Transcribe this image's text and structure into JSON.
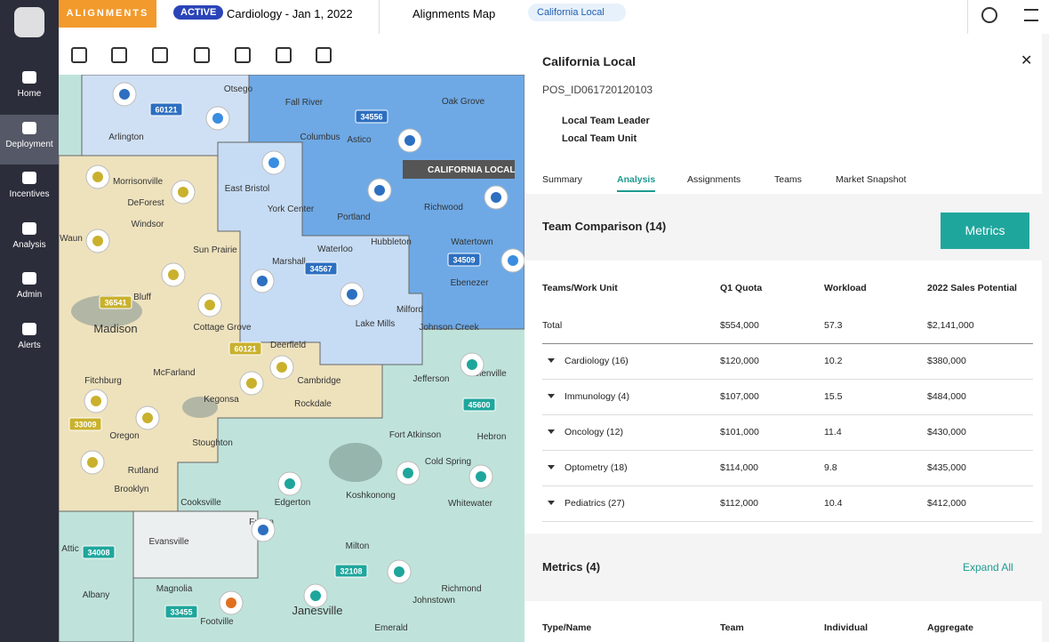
{
  "header": {
    "brand": "ALIGNMENTS",
    "status": "ACTIVE",
    "context": "Cardiology - Jan 1, 2022",
    "view": "Alignments Map",
    "chip": "California Local"
  },
  "nav": [
    "Home",
    "Deployment",
    "Incentives",
    "Analysis",
    "Admin",
    "Alerts"
  ],
  "map": {
    "callout": "CALIFORNIA LOCAL",
    "places": [
      "Otsego",
      "Fall River",
      "Oak Grove",
      "Arlington",
      "Columbus",
      "Astico",
      "Morrisonville",
      "East Bristol",
      "DeForest",
      "York Center",
      "Portland",
      "Richwood",
      "Windsor",
      "Waterloo",
      "Hubbleton",
      "Watertown",
      "Waun",
      "Sun Prairie",
      "Marshall",
      "Ebenezer",
      "Madison",
      "Bluff",
      "Milford",
      "Lake Mills",
      "Johnson Creek",
      "Cottage Grove",
      "Deerfield",
      "Cambridge",
      "McFarland",
      "Fitchburg",
      "Kegonsa",
      "Rockdale",
      "Jefferson",
      "Helenville",
      "Oregon",
      "Stoughton",
      "Fort Atkinson",
      "Hebron",
      "Rutland",
      "Cold Spring",
      "Brooklyn",
      "Cooksville",
      "Edgerton",
      "Koshkonong",
      "Whitewater",
      "Fulton",
      "Evansville",
      "Attic",
      "Milton",
      "Albany",
      "Magnolia",
      "Richmond",
      "Footville",
      "Janesville",
      "Johnstown",
      "Emerald"
    ],
    "codes": [
      "60121",
      "34556",
      "34567",
      "34509",
      "36541",
      "60121",
      "33009",
      "45600",
      "34008",
      "32108",
      "33455"
    ]
  },
  "panel": {
    "title": "California Local",
    "id": "POS_ID061720120103",
    "leader": "Local Team Leader",
    "unit": "Local Team Unit",
    "tabs": [
      "Summary",
      "Analysis",
      "Assignments",
      "Teams",
      "Market Snapshot"
    ],
    "section": "Team Comparison (14)",
    "button": "Metrics",
    "table": {
      "headers": [
        "Teams/Work Unit",
        "Q1 Quota",
        "Workload",
        "2022 Sales Potential"
      ],
      "rows": [
        [
          "Total",
          "$554,000",
          "57.3",
          "$2,141,000"
        ],
        [
          "Cardiology (16)",
          "$120,000",
          "10.2",
          "$380,000"
        ],
        [
          "Immunology (4)",
          "$107,000",
          "15.5",
          "$484,000"
        ],
        [
          "Oncology (12)",
          "$101,000",
          "11.4",
          "$430,000"
        ],
        [
          "Optometry (18)",
          "$114,000",
          "9.8",
          "$435,000"
        ],
        [
          "Pediatrics (27)",
          "$112,000",
          "10.4",
          "$412,000"
        ]
      ]
    },
    "metrics": "Metrics (4)",
    "expand": "Expand All",
    "metrics_headers": [
      "Type/Name",
      "Team",
      "Individual",
      "Aggregate"
    ]
  }
}
